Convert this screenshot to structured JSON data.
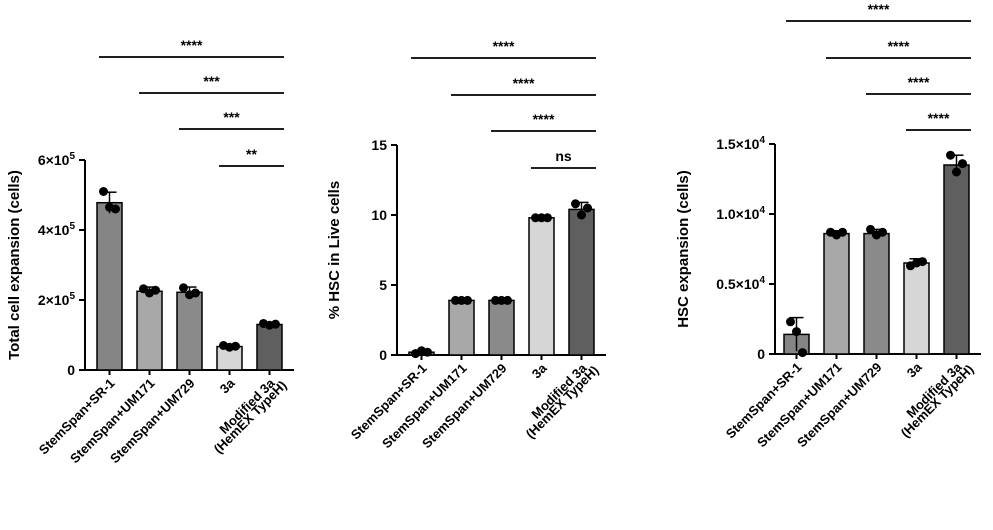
{
  "chart_data": [
    {
      "type": "bar",
      "ylabel": "Total cell expansion (cells)",
      "ylim": [
        0,
        600000
      ],
      "yticks": [
        {
          "value": 0,
          "label": "0",
          "mant": "0",
          "exp": ""
        },
        {
          "value": 200000,
          "label": "2×10^5",
          "mant": "2×10",
          "exp": "5"
        },
        {
          "value": 400000,
          "label": "4×10^5",
          "mant": "4×10",
          "exp": "5"
        },
        {
          "value": 600000,
          "label": "6×10^5",
          "mant": "6×10",
          "exp": "5"
        }
      ],
      "categories": [
        {
          "label": "StemSpan+SR-1",
          "value": 478000,
          "err": 30000,
          "color": "#858585",
          "points": [
            510000,
            465000,
            460000
          ]
        },
        {
          "label": "StemSpan+UM171",
          "value": 225000,
          "err": 12000,
          "color": "#a8a8a8",
          "points": [
            232000,
            220000,
            228000
          ]
        },
        {
          "label": "StemSpan+UM729",
          "value": 222000,
          "err": 15000,
          "color": "#8a8a8a",
          "points": [
            235000,
            215000,
            220000
          ]
        },
        {
          "label": "3a",
          "value": 67000,
          "err": 5000,
          "color": "#d6d6d6",
          "points": [
            70000,
            65000,
            68000
          ]
        },
        {
          "label": "Modified 3a",
          "label2": "(HemEX TypeH)",
          "value": 130000,
          "err": 6000,
          "color": "#5f5f5f",
          "points": [
            133000,
            128000,
            131000
          ]
        }
      ],
      "comparisons": [
        {
          "from": 0,
          "to": 4,
          "label": "****"
        },
        {
          "from": 1,
          "to": 4,
          "label": "***"
        },
        {
          "from": 2,
          "to": 4,
          "label": "***"
        },
        {
          "from": 3,
          "to": 4,
          "label": "**"
        }
      ]
    },
    {
      "type": "bar",
      "ylabel": "% HSC  in Live cells",
      "ylim": [
        0,
        15
      ],
      "yticks": [
        {
          "value": 0,
          "label": "0",
          "mant": "0",
          "exp": ""
        },
        {
          "value": 5,
          "label": "5",
          "mant": "5",
          "exp": ""
        },
        {
          "value": 10,
          "label": "10",
          "mant": "10",
          "exp": ""
        },
        {
          "value": 15,
          "label": "15",
          "mant": "15",
          "exp": ""
        }
      ],
      "categories": [
        {
          "label": "StemSpan+SR-1",
          "value": 0.2,
          "err": 0.1,
          "color": "#858585",
          "points": [
            0.1,
            0.3,
            0.2
          ]
        },
        {
          "label": "StemSpan+UM171",
          "value": 3.9,
          "err": 0.1,
          "color": "#a8a8a8",
          "points": [
            3.9,
            3.9,
            3.9
          ]
        },
        {
          "label": "StemSpan+UM729",
          "value": 3.9,
          "err": 0.1,
          "color": "#8a8a8a",
          "points": [
            3.9,
            3.9,
            3.9
          ]
        },
        {
          "label": "3a",
          "value": 9.8,
          "err": 0.1,
          "color": "#d6d6d6",
          "points": [
            9.8,
            9.8,
            9.8
          ]
        },
        {
          "label": "Modified 3a",
          "label2": "(HemEX TypeH)",
          "value": 10.4,
          "err": 0.5,
          "color": "#5f5f5f",
          "points": [
            10.8,
            10.0,
            10.5
          ]
        }
      ],
      "comparisons": [
        {
          "from": 0,
          "to": 4,
          "label": "****"
        },
        {
          "from": 1,
          "to": 4,
          "label": "****"
        },
        {
          "from": 2,
          "to": 4,
          "label": "****"
        },
        {
          "from": 3,
          "to": 4,
          "label": "ns"
        }
      ]
    },
    {
      "type": "bar",
      "ylabel": "HSC expansion (cells)",
      "ylim": [
        0,
        15000
      ],
      "yticks": [
        {
          "value": 0,
          "label": "0",
          "mant": "0",
          "exp": ""
        },
        {
          "value": 5000,
          "label": "0.5×10^4",
          "mant": "0.5×10",
          "exp": "4"
        },
        {
          "value": 10000,
          "label": "1.0×10^4",
          "mant": "1.0×10",
          "exp": "4"
        },
        {
          "value": 15000,
          "label": "1.5×10^4",
          "mant": "1.5×10",
          "exp": "4"
        }
      ],
      "categories": [
        {
          "label": "StemSpan+SR-1",
          "value": 1400,
          "err": 1200,
          "color": "#858585",
          "points": [
            2300,
            1600,
            100
          ]
        },
        {
          "label": "StemSpan+UM171",
          "value": 8600,
          "err": 200,
          "color": "#a8a8a8",
          "points": [
            8700,
            8500,
            8700
          ]
        },
        {
          "label": "StemSpan+UM729",
          "value": 8600,
          "err": 300,
          "color": "#8a8a8a",
          "points": [
            8900,
            8500,
            8700
          ]
        },
        {
          "label": "3a",
          "value": 6500,
          "err": 300,
          "color": "#d6d6d6",
          "points": [
            6300,
            6500,
            6600
          ]
        },
        {
          "label": "Modified 3a",
          "label2": "(HemEX TypeH)",
          "value": 13500,
          "err": 700,
          "color": "#5f5f5f",
          "points": [
            14200,
            13000,
            13600
          ]
        }
      ],
      "comparisons": [
        {
          "from": 0,
          "to": 4,
          "label": "****"
        },
        {
          "from": 1,
          "to": 4,
          "label": "****"
        },
        {
          "from": 2,
          "to": 4,
          "label": "****"
        },
        {
          "from": 3,
          "to": 4,
          "label": "****"
        }
      ]
    }
  ]
}
